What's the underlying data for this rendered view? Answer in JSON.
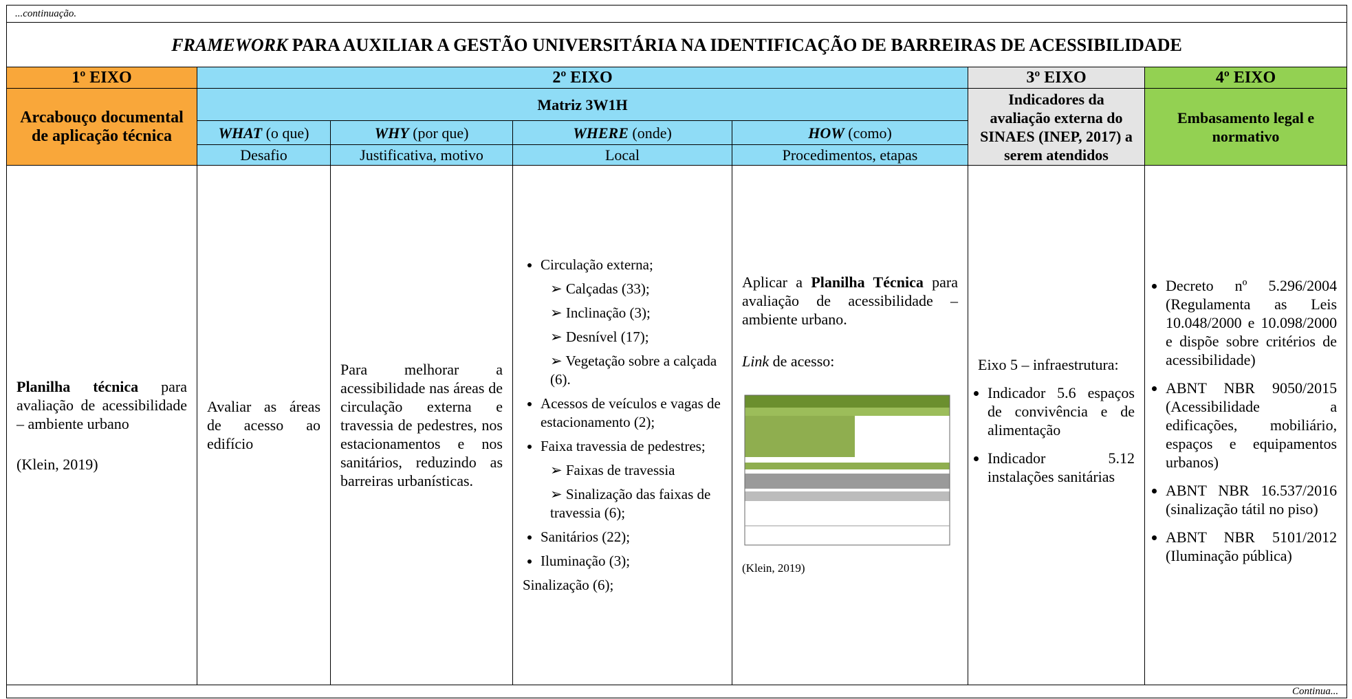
{
  "header": {
    "continuation": "...continuação.",
    "title_em": "FRAMEWORK",
    "title_rest": "PARA AUXILIAR A GESTÃO UNIVERSITÁRIA NA IDENTIFICAÇÃO DE BARREIRAS DE ACESSIBILIDADE"
  },
  "axes": [
    "1º EIXO",
    "2º EIXO",
    "3º EIXO",
    "4º EIXO"
  ],
  "axis1_heading": "Arcabouço documental de aplicação técnica",
  "matrix_title": "Matriz 3W1H",
  "matrix_columns": [
    {
      "key": "WHAT",
      "note": "(o que)",
      "sub": "Desafio"
    },
    {
      "key": "WHY",
      "note": "(por que)",
      "sub": "Justificativa, motivo"
    },
    {
      "key": "WHERE",
      "note": "(onde)",
      "sub": "Local"
    },
    {
      "key": "HOW",
      "note": "(como)",
      "sub": "Procedimentos, etapas"
    }
  ],
  "axis3_heading": "Indicadores da avaliação externa do SINAES (INEP, 2017) a serem atendidos",
  "axis4_heading": "Embasamento legal e normativo",
  "row": {
    "document": {
      "bold": "Planilha técnica",
      "rest": "para avaliação de acessibilidade – ambiente urbano",
      "citation": "(Klein, 2019)"
    },
    "what": "Avaliar as áreas de acesso ao edifício",
    "why": "Para melhorar a acessibilidade nas áreas de circulação externa e travessia de pedestres, nos estacionamentos e nos sanitários, reduzindo as barreiras urbanísticas.",
    "where": {
      "items": [
        {
          "text": "Circulação externa;",
          "sub": [
            "Calçadas (33);",
            "Inclinação (3);",
            "Desnível (17);",
            "Vegetação sobre a calçada (6)."
          ]
        },
        {
          "text": "Acessos de veículos e vagas de estacionamento (2);",
          "sub": []
        },
        {
          "text": "Faixa travessia de pedestres;",
          "sub": [
            "Faixas de travessia",
            "Sinalização das faixas de travessia (6);"
          ]
        },
        {
          "text": "Sanitários (22);",
          "sub": []
        },
        {
          "text": "Iluminação (3);",
          "sub": []
        }
      ],
      "trailing": "Sinalização (6);"
    },
    "how": {
      "pre": "Aplicar a",
      "bold": "Planilha Técnica",
      "post": "para avaliação de acessibilidade – ambiente urbano.",
      "link_em": "Link",
      "link_rest": "de acesso:",
      "citation": "(Klein, 2019)"
    },
    "indicators": {
      "intro": "Eixo 5 – infraestrutura:",
      "items": [
        "Indicador 5.6 espaços de convivência e de alimentação",
        "Indicador 5.12 instalações sanitárias"
      ]
    },
    "legal": [
      "Decreto nº 5.296/2004 (Regulamenta as Leis 10.048/2000 e 10.098/2000 e dispõe sobre critérios de acessibilidade)",
      "ABNT NBR 9050/2015 (Acessibilidade a edificações, mobiliário, espaços e equipamentos urbanos)",
      "ABNT NBR 16.537/2016 (sinalização tátil no piso)",
      "ABNT NBR 5101/2012 (Iluminação pública)"
    ]
  },
  "footer": "Continua..."
}
